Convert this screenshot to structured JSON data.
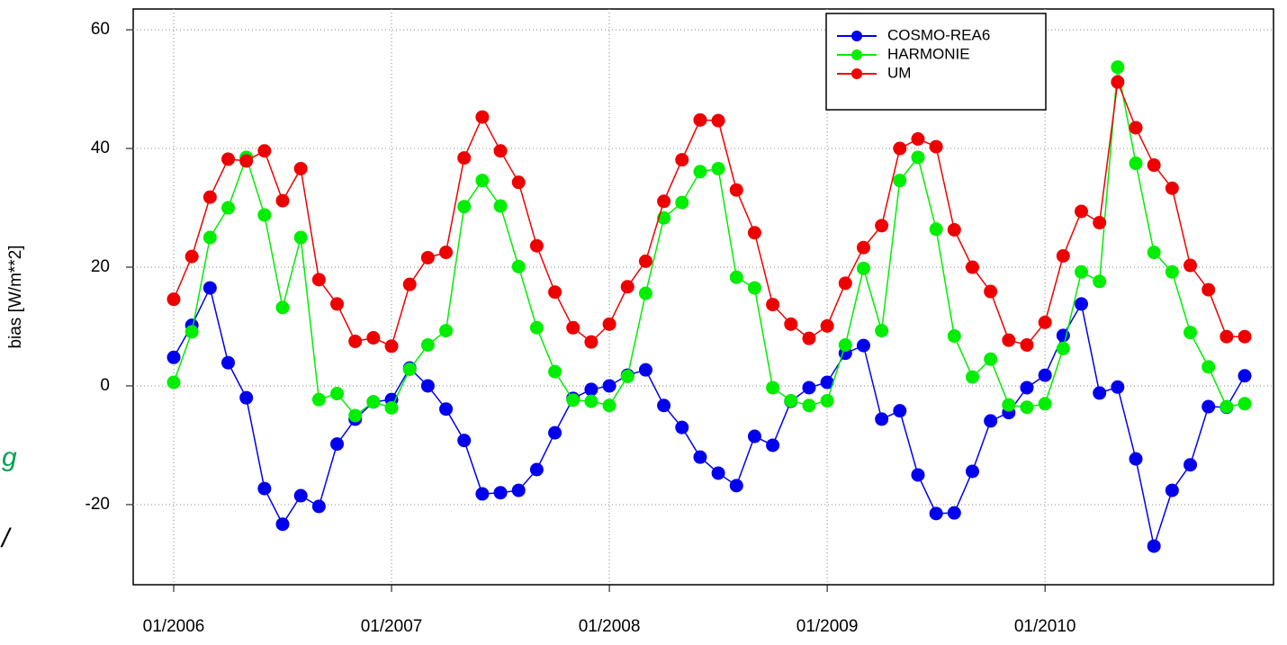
{
  "chart_data": {
    "type": "line",
    "ylabel": "bias [W/m**2]",
    "x": [
      "01/2006",
      "02/2006",
      "03/2006",
      "04/2006",
      "05/2006",
      "06/2006",
      "07/2006",
      "08/2006",
      "09/2006",
      "10/2006",
      "11/2006",
      "12/2006",
      "01/2007",
      "02/2007",
      "03/2007",
      "04/2007",
      "05/2007",
      "06/2007",
      "07/2007",
      "08/2007",
      "09/2007",
      "10/2007",
      "11/2007",
      "12/2007",
      "01/2008",
      "02/2008",
      "03/2008",
      "04/2008",
      "05/2008",
      "06/2008",
      "07/2008",
      "08/2008",
      "09/2008",
      "10/2008",
      "11/2008",
      "12/2008",
      "01/2009",
      "02/2009",
      "03/2009",
      "04/2009",
      "05/2009",
      "06/2009",
      "07/2009",
      "08/2009",
      "09/2009",
      "10/2009",
      "11/2009",
      "12/2009",
      "01/2010",
      "02/2010",
      "03/2010",
      "04/2010",
      "05/2010",
      "06/2010",
      "07/2010",
      "08/2010",
      "09/2010",
      "10/2010",
      "11/2010",
      "12/2010"
    ],
    "xticks": [
      "01/2006",
      "01/2007",
      "01/2008",
      "01/2009",
      "01/2010"
    ],
    "ylim": [
      -33.5,
      63.5
    ],
    "yticks": [
      -20,
      0,
      20,
      40,
      60
    ],
    "grid": true,
    "legend": "top-right",
    "series": [
      {
        "name": "COSMO-REA6",
        "color": "#0000ee",
        "values": [
          4.8,
          10.2,
          16.5,
          3.9,
          -2.0,
          -17.3,
          -23.3,
          -18.5,
          -20.3,
          -9.8,
          -5.6,
          -2.7,
          -2.3,
          3.0,
          0.0,
          -3.9,
          -9.2,
          -18.2,
          -18.0,
          -17.6,
          -14.1,
          -7.9,
          -2.1,
          -0.6,
          0.0,
          1.8,
          2.7,
          -3.3,
          -7.0,
          -12.0,
          -14.7,
          -16.8,
          -8.5,
          -10.0,
          -2.6,
          -0.3,
          0.6,
          5.5,
          6.8,
          -5.6,
          -4.2,
          -15.0,
          -21.5,
          -21.4,
          -14.4,
          -5.9,
          -4.5,
          -0.3,
          1.8,
          8.5,
          13.8,
          -1.2,
          -0.2,
          -12.3,
          -27.0,
          -17.6,
          -13.3,
          -3.5,
          -3.6,
          1.7
        ]
      },
      {
        "name": "HARMONIE",
        "color": "#00ee00",
        "values": [
          0.6,
          9.1,
          25.0,
          30.0,
          38.5,
          28.8,
          13.2,
          25.0,
          -2.3,
          -1.3,
          -5.0,
          -2.7,
          -3.7,
          2.8,
          6.9,
          9.3,
          30.2,
          34.6,
          30.3,
          20.1,
          9.8,
          2.4,
          -2.4,
          -2.6,
          -3.3,
          1.6,
          15.6,
          28.3,
          30.9,
          36.1,
          36.6,
          18.3,
          16.5,
          -0.3,
          -2.5,
          -3.3,
          -2.5,
          6.9,
          19.8,
          9.3,
          34.6,
          38.5,
          26.4,
          8.4,
          1.5,
          4.5,
          -3.2,
          -3.6,
          -3.0,
          6.3,
          19.2,
          17.6,
          53.7,
          37.5,
          22.5,
          19.2,
          9.0,
          3.2,
          -3.5,
          -3.0
        ]
      },
      {
        "name": "UM",
        "color": "#ee0000",
        "values": [
          14.6,
          21.8,
          31.8,
          38.2,
          37.9,
          39.6,
          31.2,
          36.6,
          17.9,
          13.8,
          7.5,
          8.1,
          6.7,
          17.1,
          21.6,
          22.5,
          38.4,
          45.3,
          39.6,
          34.3,
          23.6,
          15.8,
          9.8,
          7.4,
          10.4,
          16.7,
          21.0,
          31.1,
          38.1,
          44.8,
          44.7,
          33.0,
          25.8,
          13.7,
          10.4,
          8.0,
          10.1,
          17.3,
          23.3,
          27.0,
          40.0,
          41.6,
          40.3,
          26.3,
          20.0,
          15.9,
          7.7,
          6.9,
          10.7,
          21.9,
          29.4,
          27.5,
          51.2,
          43.5,
          37.2,
          33.3,
          20.3,
          16.2,
          8.3,
          8.3
        ]
      }
    ]
  },
  "cropped_text": [
    "g",
    "/"
  ]
}
